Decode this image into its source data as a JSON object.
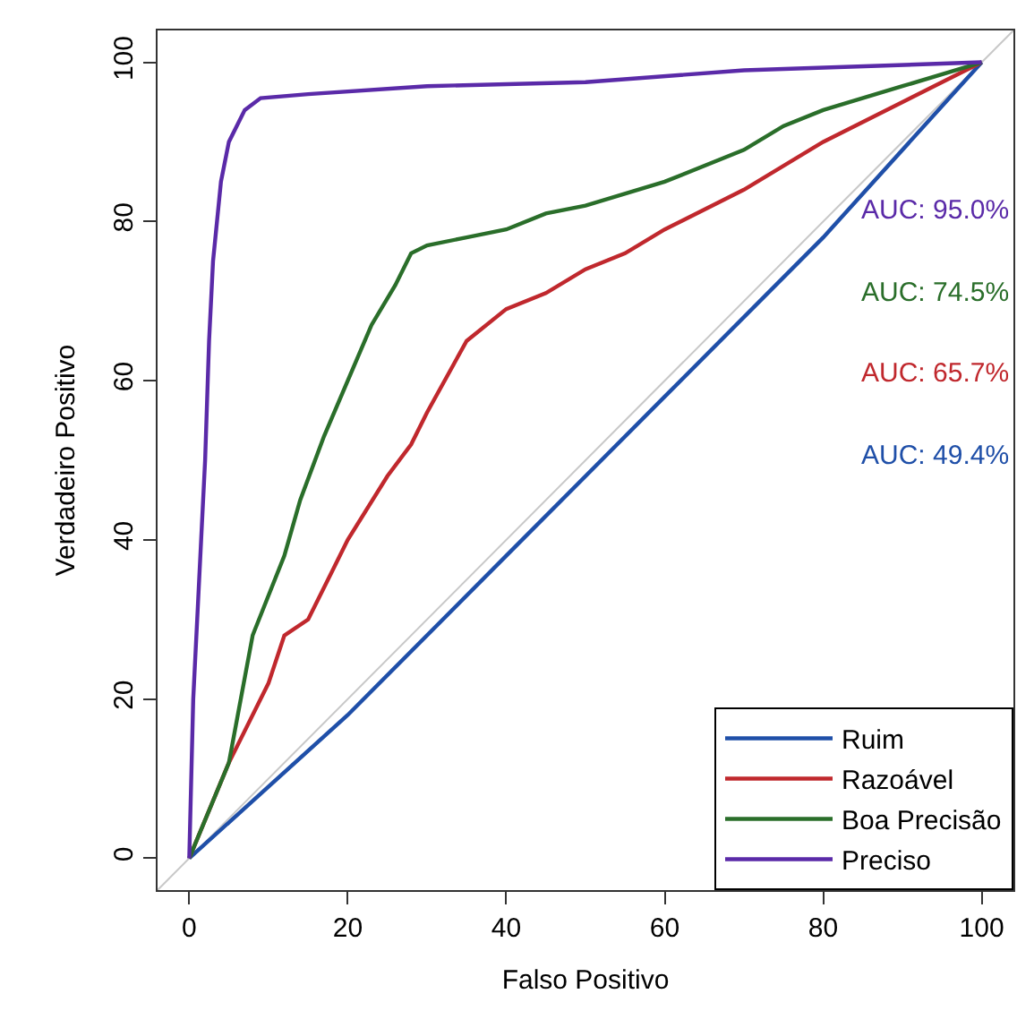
{
  "chart_data": {
    "type": "line",
    "xlabel": "Falso Positivo",
    "ylabel": "Verdadeiro Positivo",
    "xlim": [
      -4,
      104
    ],
    "ylim": [
      -4,
      104
    ],
    "xticks": [
      0,
      20,
      40,
      60,
      80,
      100
    ],
    "yticks": [
      0,
      20,
      40,
      60,
      80,
      100
    ],
    "legend": "bottom right",
    "marker": "none",
    "line_style": "solid",
    "annotations": [
      "AUC: 95.0%",
      "AUC: 74.5%",
      "AUC: 65.7%",
      "AUC: 49.4%"
    ],
    "series": [
      {
        "color": "#c8c8c8",
        "x": [
          -4,
          104
        ],
        "values": [
          -4,
          104
        ]
      },
      {
        "name": "Ruim",
        "color": "#1f4fa8",
        "x": [
          0,
          20,
          40,
          60,
          80,
          100
        ],
        "values": [
          0,
          18,
          38,
          58,
          78,
          100
        ]
      },
      {
        "name": "Razoável",
        "color": "#c0282d",
        "x": [
          0,
          5,
          10,
          12,
          15,
          18,
          20,
          25,
          28,
          30,
          35,
          40,
          45,
          50,
          55,
          60,
          70,
          80,
          90,
          100
        ],
        "values": [
          0,
          12,
          22,
          28,
          30,
          36,
          40,
          48,
          52,
          56,
          65,
          69,
          71,
          74,
          76,
          79,
          84,
          90,
          95,
          100
        ]
      },
      {
        "name": "Boa Precisão",
        "color": "#2a6e2a",
        "x": [
          0,
          5,
          8,
          12,
          14,
          17,
          20,
          23,
          26,
          28,
          30,
          35,
          40,
          45,
          50,
          60,
          70,
          75,
          80,
          90,
          100
        ],
        "values": [
          0,
          12,
          28,
          38,
          45,
          53,
          60,
          67,
          72,
          76,
          77,
          78,
          79,
          81,
          82,
          85,
          89,
          92,
          94,
          97,
          100
        ]
      },
      {
        "name": "Preciso",
        "color": "#5a2aa8",
        "x": [
          0,
          0.5,
          1,
          1.5,
          2,
          2.5,
          3,
          4,
          5,
          7,
          9,
          15,
          30,
          50,
          70,
          100
        ],
        "values": [
          0,
          20,
          30,
          40,
          50,
          65,
          75,
          85,
          90,
          94,
          95.5,
          96,
          97,
          97.5,
          99,
          100
        ]
      }
    ]
  }
}
